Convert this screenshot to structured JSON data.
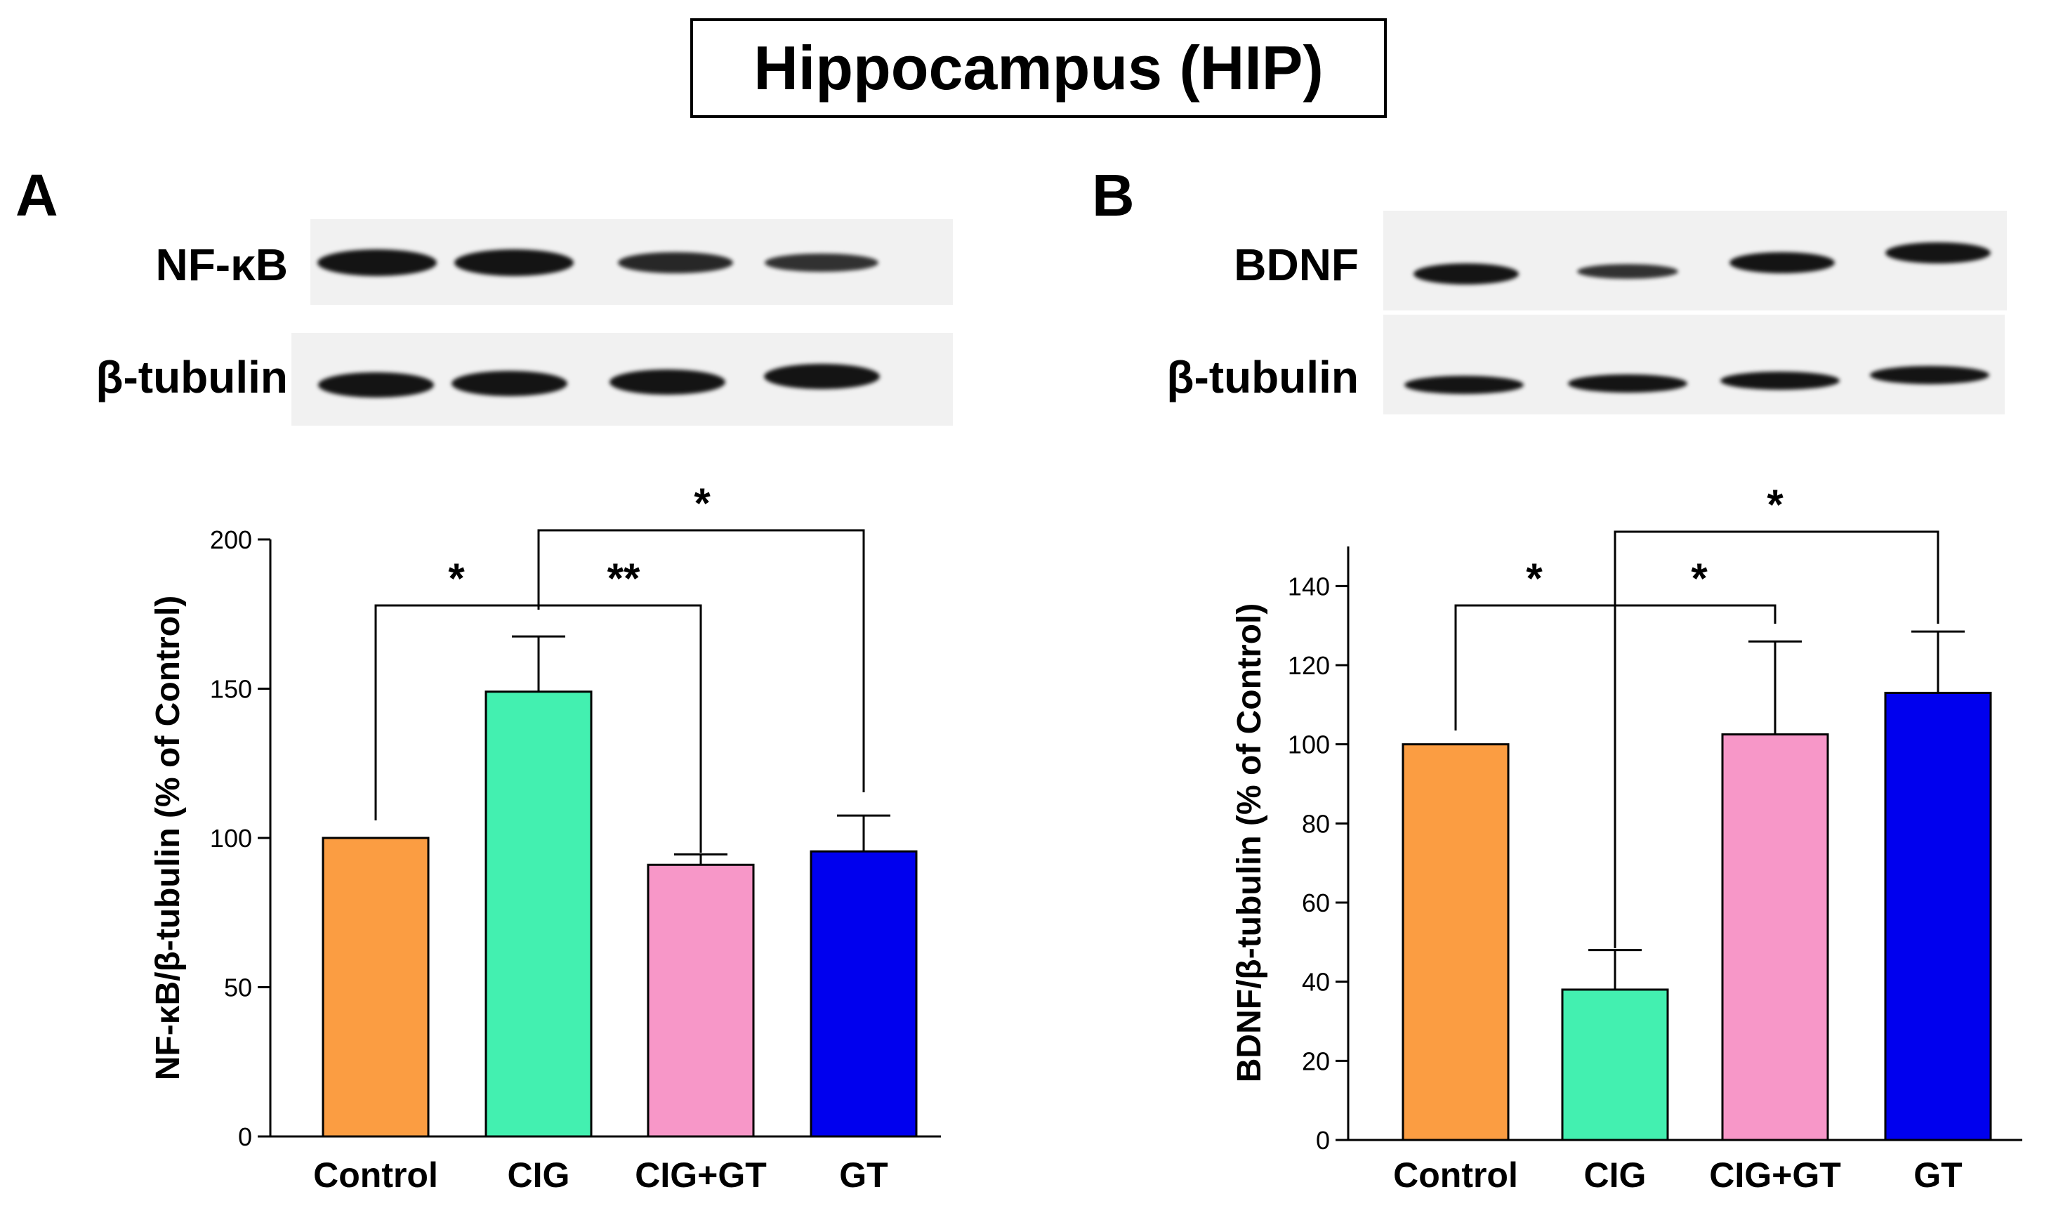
{
  "figure": {
    "title": "Hippocampus (HIP)"
  },
  "panels": [
    {
      "label": "A",
      "blot_top_label": "NF-κB",
      "blot_bottom_label": "β-tubulin",
      "top_band_intensity": [
        1.0,
        1.0,
        0.8,
        0.7
      ],
      "bottom_band_intensity": [
        1.0,
        1.0,
        1.0,
        1.0
      ]
    },
    {
      "label": "B",
      "blot_top_label": "BDNF",
      "blot_bottom_label": "β-tubulin",
      "top_band_intensity": [
        1.0,
        0.7,
        1.0,
        1.0
      ],
      "bottom_band_intensity": [
        1.0,
        1.0,
        1.0,
        1.0
      ]
    }
  ],
  "chart_data": [
    {
      "type": "bar",
      "categories": [
        "Control",
        "CIG",
        "CIG+GT",
        "GT"
      ],
      "values": [
        100,
        149,
        91,
        95.5
      ],
      "errors": [
        0,
        18.5,
        3.5,
        12
      ],
      "colors": [
        "#fb9d42",
        "#43f0b0",
        "#f797c8",
        "#0000ee"
      ],
      "title": "",
      "xlabel": "",
      "ylabel": "NF-κB/β-tubulin (% of Control)",
      "ylim": [
        0,
        200
      ],
      "yticks": [
        0,
        50,
        100,
        150,
        200
      ],
      "grid": false,
      "significance": [
        {
          "from": "Control",
          "to": "CIG",
          "label": "*"
        },
        {
          "from": "CIG",
          "to": "CIG+GT",
          "label": "**"
        },
        {
          "from": "CIG",
          "to": "GT",
          "label": "*"
        }
      ]
    },
    {
      "type": "bar",
      "categories": [
        "Control",
        "CIG",
        "CIG+GT",
        "GT"
      ],
      "values": [
        100,
        38,
        102.5,
        113
      ],
      "errors": [
        0,
        10,
        23.5,
        15.5
      ],
      "colors": [
        "#fb9d42",
        "#43f0b0",
        "#f797c8",
        "#0000ee"
      ],
      "title": "",
      "xlabel": "",
      "ylabel": "BDNF/β-tubulin (% of Control)",
      "ylim": [
        0,
        150
      ],
      "yticks": [
        0,
        20,
        40,
        60,
        80,
        100,
        120,
        140
      ],
      "grid": false,
      "significance": [
        {
          "from": "Control",
          "to": "CIG",
          "label": "*"
        },
        {
          "from": "CIG",
          "to": "CIG+GT",
          "label": "*"
        },
        {
          "from": "CIG",
          "to": "GT",
          "label": "*"
        }
      ]
    }
  ]
}
